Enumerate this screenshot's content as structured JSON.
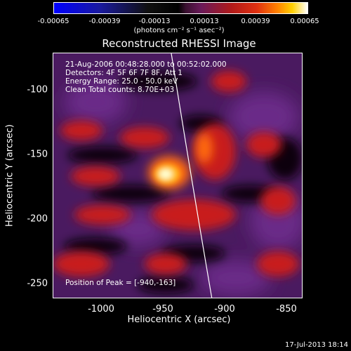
{
  "colorbar": {
    "ticks": [
      "-0.00065",
      "-0.00039",
      "-0.00013",
      "0.00013",
      "0.00039",
      "0.00065"
    ],
    "units": "(photons cm⁻² s⁻¹ asec⁻²)"
  },
  "title": "Reconstructed RHESSI Image",
  "info": {
    "time": "21-Aug-2006 00:48:28.000 to 00:52:02.000",
    "detectors": "Detectors: 4F 5F 6F 7F 8F, Att 1",
    "energy": "Energy Range: 25.0 - 50.0 keV",
    "clean": "Clean     Total counts: 8.70E+03",
    "peak": "Position of Peak = [-940,-163]"
  },
  "axes": {
    "xlabel": "Heliocentric X (arcsec)",
    "ylabel": "Heliocentric Y (arcsec)",
    "xticks": [
      "-1000",
      "-950",
      "-900",
      "-850"
    ],
    "yticks": [
      "-100",
      "-150",
      "-200",
      "-250"
    ]
  },
  "datestamp": "17-Jul-2013 18:14"
}
